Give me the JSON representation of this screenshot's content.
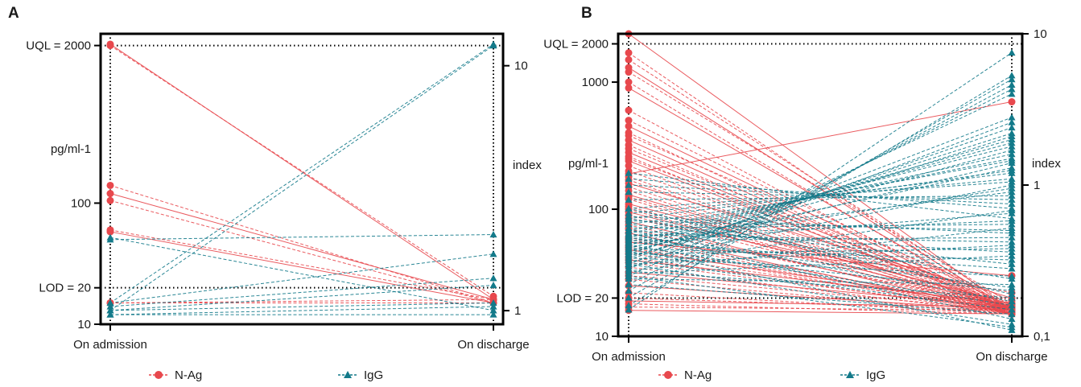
{
  "colors": {
    "nag": "#e8484d",
    "igg": "#137a8a",
    "axis": "#000000"
  },
  "legend": [
    {
      "label": "N-Ag",
      "marker": "circle",
      "line": "dashed",
      "color": "#e8484d"
    },
    {
      "label": "IgG",
      "marker": "triangle",
      "line": "dashed",
      "color": "#137a8a"
    }
  ],
  "chart_data": [
    {
      "panel": "A",
      "type": "line",
      "x_categories": [
        "On admission",
        "On discharge"
      ],
      "left_axis": {
        "label": "pg/ml-1",
        "scale": "log",
        "ylim": [
          10,
          2500
        ],
        "ticks": [
          {
            "value": 10,
            "label": "10"
          },
          {
            "value": 20,
            "label": "LOD = 20"
          },
          {
            "value": 100,
            "label": "100"
          },
          {
            "value": 2000,
            "label": "UQL = 2000"
          }
        ]
      },
      "right_axis": {
        "label": "index",
        "scale": "log",
        "ylim": [
          0.88,
          13.5
        ],
        "ticks": [
          {
            "value": 1,
            "label": "1"
          },
          {
            "value": 10,
            "label": "10"
          }
        ]
      },
      "reference_lines": [
        {
          "axis": "left",
          "value": 2000,
          "label": "UQL = 2000"
        },
        {
          "axis": "left",
          "value": 20,
          "label": "LOD = 20"
        }
      ],
      "series": [
        {
          "name": "N-Ag",
          "axis": "left",
          "pairs": [
            [
              2050,
              16
            ],
            [
              2000,
              17
            ],
            [
              140,
              15
            ],
            [
              120,
              16
            ],
            [
              105,
              15
            ],
            [
              60,
              16
            ],
            [
              58,
              15
            ],
            [
              15,
              15
            ],
            [
              15,
              16
            ]
          ]
        },
        {
          "name": "IgG",
          "axis": "left",
          "pairs": [
            [
              15,
              2050
            ],
            [
              13,
              2000
            ],
            [
              50,
              55
            ],
            [
              52,
              13
            ],
            [
              15,
              38
            ],
            [
              14,
              24
            ],
            [
              13,
              21
            ],
            [
              13,
              15
            ],
            [
              12,
              14
            ],
            [
              12,
              12
            ]
          ]
        }
      ]
    },
    {
      "panel": "B",
      "type": "line",
      "x_categories": [
        "On admission",
        "On discharge"
      ],
      "left_axis": {
        "label": "pg/ml-1",
        "scale": "log",
        "ylim": [
          10,
          2400
        ],
        "ticks": [
          {
            "value": 10,
            "label": "10"
          },
          {
            "value": 20,
            "label": "LOD = 20"
          },
          {
            "value": 100,
            "label": "100"
          },
          {
            "value": 1000,
            "label": "1000"
          },
          {
            "value": 2000,
            "label": "UQL = 2000"
          }
        ]
      },
      "right_axis": {
        "label": "index",
        "scale": "log",
        "ylim": [
          0.1,
          10
        ],
        "ticks": [
          {
            "value": 0.1,
            "label": "0,1"
          },
          {
            "value": 1,
            "label": "1"
          },
          {
            "value": 10,
            "label": "10"
          }
        ]
      },
      "reference_lines": [
        {
          "axis": "left",
          "value": 2000,
          "label": "UQL = 2000"
        },
        {
          "axis": "left",
          "value": 20,
          "label": "LOD = 20"
        }
      ],
      "series": [
        {
          "name": "N-Ag",
          "axis": "left",
          "pairs": [
            [
              2400,
              16
            ],
            [
              1700,
              15
            ],
            [
              1500,
              17
            ],
            [
              1300,
              16
            ],
            [
              1200,
              18
            ],
            [
              1000,
              15
            ],
            [
              900,
              16
            ],
            [
              600,
              15
            ],
            [
              500,
              17
            ],
            [
              450,
              16
            ],
            [
              400,
              15
            ],
            [
              380,
              19
            ],
            [
              350,
              16
            ],
            [
              320,
              15
            ],
            [
              300,
              17
            ],
            [
              280,
              16
            ],
            [
              260,
              15
            ],
            [
              250,
              18
            ],
            [
              240,
              16
            ],
            [
              220,
              15
            ],
            [
              200,
              17
            ],
            [
              190,
              700
            ],
            [
              180,
              16
            ],
            [
              170,
              15
            ],
            [
              160,
              20
            ],
            [
              150,
              16
            ],
            [
              140,
              15
            ],
            [
              130,
              17
            ],
            [
              125,
              16
            ],
            [
              120,
              15
            ],
            [
              110,
              18
            ],
            [
              105,
              16
            ],
            [
              100,
              15
            ],
            [
              95,
              17
            ],
            [
              90,
              16
            ],
            [
              85,
              22
            ],
            [
              80,
              15
            ],
            [
              75,
              16
            ],
            [
              70,
              17
            ],
            [
              65,
              15
            ],
            [
              60,
              16
            ],
            [
              58,
              15
            ],
            [
              55,
              30
            ],
            [
              52,
              16
            ],
            [
              50,
              15
            ],
            [
              48,
              17
            ],
            [
              45,
              16
            ],
            [
              42,
              15
            ],
            [
              40,
              18
            ],
            [
              38,
              16
            ],
            [
              35,
              15
            ],
            [
              32,
              17
            ],
            [
              30,
              16
            ],
            [
              28,
              15
            ],
            [
              25,
              16
            ],
            [
              22,
              15
            ],
            [
              20,
              16
            ],
            [
              19,
              17
            ],
            [
              18,
              15
            ],
            [
              17,
              16
            ],
            [
              16,
              15
            ]
          ]
        },
        {
          "name": "IgG",
          "axis": "right",
          "pairs": [
            [
              0.15,
              7.5
            ],
            [
              0.16,
              5.3
            ],
            [
              0.18,
              5.0
            ],
            [
              0.2,
              4.6
            ],
            [
              0.22,
              4.3
            ],
            [
              0.25,
              4.0
            ],
            [
              0.3,
              2.8
            ],
            [
              0.28,
              2.6
            ],
            [
              0.32,
              2.4
            ],
            [
              0.35,
              2.2
            ],
            [
              0.33,
              2.1
            ],
            [
              0.38,
              2.0
            ],
            [
              0.4,
              1.9
            ],
            [
              0.42,
              1.8
            ],
            [
              0.36,
              1.7
            ],
            [
              0.45,
              1.6
            ],
            [
              0.48,
              1.5
            ],
            [
              0.5,
              1.45
            ],
            [
              0.34,
              1.4
            ],
            [
              0.37,
              1.3
            ],
            [
              0.55,
              1.25
            ],
            [
              0.6,
              1.2
            ],
            [
              0.65,
              1.1
            ],
            [
              0.7,
              1.05
            ],
            [
              0.31,
              1.0
            ],
            [
              0.39,
              0.95
            ],
            [
              0.44,
              0.9
            ],
            [
              0.8,
              0.85
            ],
            [
              0.9,
              0.8
            ],
            [
              1.0,
              0.75
            ],
            [
              1.1,
              0.7
            ],
            [
              0.29,
              0.68
            ],
            [
              0.41,
              0.65
            ],
            [
              1.2,
              0.6
            ],
            [
              0.46,
              0.58
            ],
            [
              0.52,
              0.55
            ],
            [
              0.27,
              0.52
            ],
            [
              0.58,
              0.5
            ],
            [
              0.62,
              0.48
            ],
            [
              0.43,
              0.45
            ],
            [
              0.47,
              0.42
            ],
            [
              0.3,
              0.4
            ],
            [
              0.35,
              0.38
            ],
            [
              0.5,
              0.36
            ],
            [
              0.26,
              0.34
            ],
            [
              0.38,
              0.32
            ],
            [
              0.55,
              0.3
            ],
            [
              0.42,
              0.28
            ],
            [
              0.33,
              0.25
            ],
            [
              0.6,
              0.24
            ],
            [
              0.24,
              0.22
            ],
            [
              0.45,
              0.21
            ],
            [
              0.36,
              0.2
            ],
            [
              0.7,
              0.19
            ],
            [
              0.27,
              0.18
            ],
            [
              0.5,
              0.17
            ],
            [
              0.4,
              0.16
            ],
            [
              0.32,
              0.15
            ],
            [
              0.22,
              0.14
            ],
            [
              0.48,
              0.13
            ],
            [
              0.3,
              0.12
            ],
            [
              0.25,
              0.115
            ],
            [
              0.38,
              0.11
            ]
          ]
        }
      ]
    }
  ]
}
